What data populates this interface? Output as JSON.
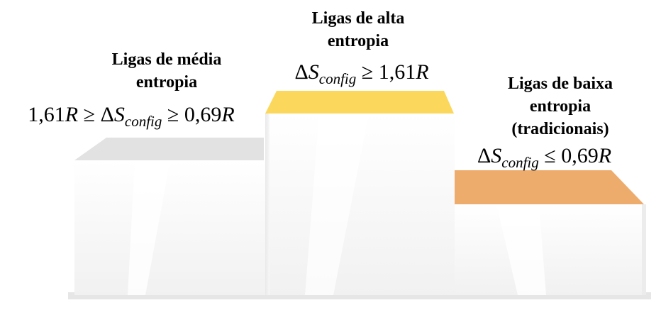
{
  "tiers": [
    {
      "id": "media",
      "title_lines": [
        "Ligas de média",
        "entropia"
      ],
      "formula": {
        "left": "1,61",
        "left_var": "R",
        "op1": "≥",
        "delta": "Δ",
        "symbol": "S",
        "subscript": "config",
        "op2": "≥",
        "right": "0,69",
        "right_var": "R"
      },
      "top_color": "#e2e2e2"
    },
    {
      "id": "alta",
      "title_lines": [
        "Ligas de alta",
        "entropia"
      ],
      "formula": {
        "delta": "Δ",
        "symbol": "S",
        "subscript": "config",
        "op": "≥",
        "right": "1,61",
        "right_var": "R"
      },
      "top_color": "#fbd85c"
    },
    {
      "id": "baixa",
      "title_lines": [
        "Ligas de baixa",
        "entropia",
        "(tradicionais)"
      ],
      "formula": {
        "delta": "Δ",
        "symbol": "S",
        "subscript": "config",
        "op": "≤",
        "right": "0,69",
        "right_var": "R"
      },
      "top_color": "#eeac6c"
    }
  ],
  "podium_color": "#f7f7f7"
}
